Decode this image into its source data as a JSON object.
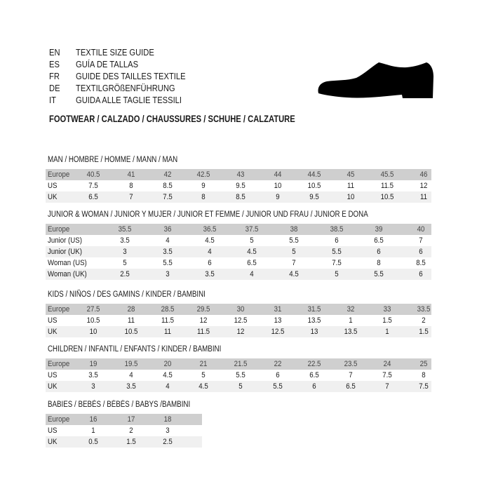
{
  "header": {
    "lines": [
      {
        "code": "EN",
        "text": "TEXTILE SIZE GUIDE"
      },
      {
        "code": "ES",
        "text": "GUÍA DE TALLAS"
      },
      {
        "code": "FR",
        "text": "GUIDE DES TAILLES TEXTILE"
      },
      {
        "code": "DE",
        "text": "TEXTILGRÖßENFÜHRUNG"
      },
      {
        "code": "IT",
        "text": "GUIDA ALLE TAGLIE TESSILI"
      }
    ],
    "footwear": "FOOTWEAR / CALZADO / CHAUSSURES / SCHUHE / CALZATURE",
    "icon": "shoe-icon"
  },
  "colors": {
    "header_row": "#cfcfcf",
    "alt_row": "#f0f0f0",
    "text": "#1a1a1a"
  },
  "sections": [
    {
      "title": "MAN / HOMBRE / HOMME / MANN / MAN",
      "rows": [
        {
          "label": "Europe",
          "values": [
            "40.5",
            "41",
            "42",
            "42.5",
            "43",
            "44",
            "44.5",
            "45",
            "45.5",
            "46"
          ]
        },
        {
          "label": "US",
          "values": [
            "7.5",
            "8",
            "8.5",
            "9",
            "9.5",
            "10",
            "10.5",
            "11",
            "11.5",
            "12"
          ]
        },
        {
          "label": "UK",
          "values": [
            "6.5",
            "7",
            "7.5",
            "8",
            "8.5",
            "9",
            "9.5",
            "10",
            "10.5",
            "11"
          ]
        }
      ]
    },
    {
      "title": "JUNIOR & WOMAN / JUNIOR Y MUJER / JUNIOR ET FEMME / JUNIOR UND FRAU / JUNIOR E DONA",
      "rows": [
        {
          "label": "Europe",
          "values": [
            "35.5",
            "36",
            "36.5",
            "37.5",
            "38",
            "38.5",
            "39",
            "40"
          ]
        },
        {
          "label": "Junior (US)",
          "values": [
            "3.5",
            "4",
            "4.5",
            "5",
            "5.5",
            "6",
            "6.5",
            "7"
          ]
        },
        {
          "label": "Junior (UK)",
          "values": [
            "3",
            "3.5",
            "4",
            "4.5",
            "5",
            "5.5",
            "6",
            "6"
          ]
        },
        {
          "label": "Woman (US)",
          "values": [
            "5",
            "5.5",
            "6",
            "6.5",
            "7",
            "7.5",
            "8",
            "8.5"
          ]
        },
        {
          "label": "Woman (UK)",
          "values": [
            "2.5",
            "3",
            "3.5",
            "4",
            "4.5",
            "5",
            "5.5",
            "6"
          ]
        }
      ]
    },
    {
      "title": "KIDS / NIÑOS / DES GAMINS / KINDER / BAMBINI",
      "rows": [
        {
          "label": "Europe",
          "values": [
            "27.5",
            "28",
            "28.5",
            "29.5",
            "30",
            "31",
            "31.5",
            "32",
            "33",
            "33.5"
          ]
        },
        {
          "label": "US",
          "values": [
            "10.5",
            "11",
            "11.5",
            "12",
            "12.5",
            "13",
            "13.5",
            "1",
            "1.5",
            "2"
          ]
        },
        {
          "label": "UK",
          "values": [
            "10",
            "10.5",
            "11",
            "11.5",
            "12",
            "12.5",
            "13",
            "13.5",
            "1",
            "1.5"
          ]
        }
      ]
    },
    {
      "title": "CHILDREN / INFANTIL / ENFANTS / KINDER / BAMBINI",
      "rows": [
        {
          "label": "Europe",
          "values": [
            "19",
            "19.5",
            "20",
            "21",
            "21.5",
            "22",
            "22.5",
            "23.5",
            "24",
            "25"
          ]
        },
        {
          "label": "US",
          "values": [
            "3.5",
            "4",
            "4.5",
            "5",
            "5.5",
            "6",
            "6.5",
            "7",
            "7.5",
            "8"
          ]
        },
        {
          "label": "UK",
          "values": [
            "3",
            "3.5",
            "4",
            "4.5",
            "5",
            "5.5",
            "6",
            "6.5",
            "7",
            "7.5"
          ]
        }
      ]
    },
    {
      "title": "BABIES  / BEBÉS / BÉBÉS / BABYS /BAMBINI",
      "rows": [
        {
          "label": "Europe",
          "values": [
            "16",
            "17",
            "18"
          ]
        },
        {
          "label": "US",
          "values": [
            "1",
            "2",
            "3"
          ]
        },
        {
          "label": "UK",
          "values": [
            "0.5",
            "1.5",
            "2.5"
          ]
        }
      ]
    }
  ]
}
